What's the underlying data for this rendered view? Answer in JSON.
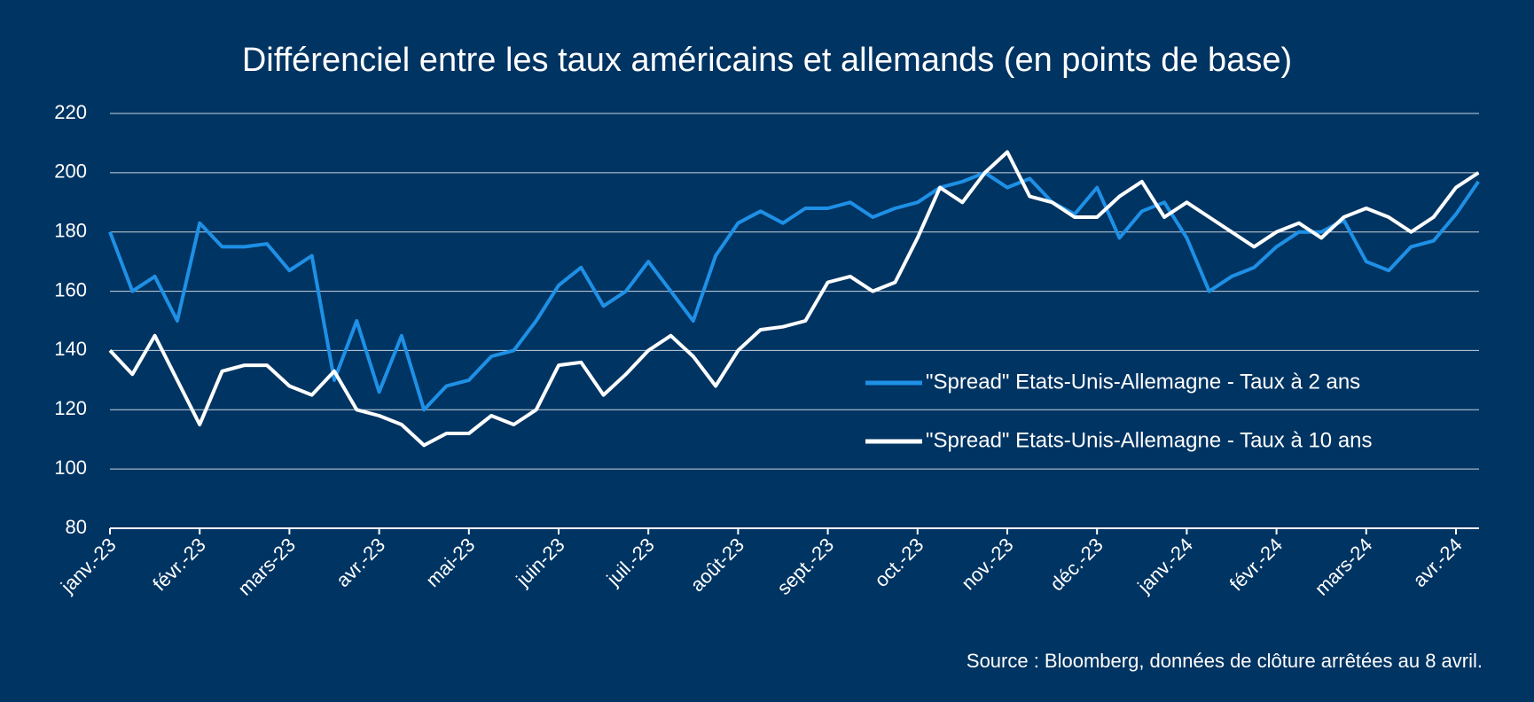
{
  "chart_data": {
    "type": "line",
    "title": "Différenciel entre les taux américains et allemands (en points de base)",
    "source": "Source : Bloomberg, données de clôture arrêtées au 8 avril.",
    "categories": [
      "janv.-23",
      "févr.-23",
      "mars-23",
      "avr.-23",
      "mai-23",
      "juin-23",
      "juil.-23",
      "août-23",
      "sept.-23",
      "oct.-23",
      "nov.-23",
      "déc.-23",
      "janv.-24",
      "févr.-24",
      "mars-24",
      "avr.-24"
    ],
    "x": [
      "janv.-23",
      "janv.-23",
      "janv.-23",
      "janv.-23",
      "févr.-23",
      "févr.-23",
      "févr.-23",
      "févr.-23",
      "mars-23",
      "mars-23",
      "mars-23",
      "mars-23",
      "avr.-23",
      "avr.-23",
      "avr.-23",
      "avr.-23",
      "mai-23",
      "mai-23",
      "mai-23",
      "mai-23",
      "juin-23",
      "juin-23",
      "juin-23",
      "juin-23",
      "juil.-23",
      "juil.-23",
      "juil.-23",
      "juil.-23",
      "août-23",
      "août-23",
      "août-23",
      "août-23",
      "sept.-23",
      "sept.-23",
      "sept.-23",
      "sept.-23",
      "oct.-23",
      "oct.-23",
      "oct.-23",
      "oct.-23",
      "nov.-23",
      "nov.-23",
      "nov.-23",
      "nov.-23",
      "déc.-23",
      "déc.-23",
      "déc.-23",
      "déc.-23",
      "janv.-24",
      "janv.-24",
      "janv.-24",
      "janv.-24",
      "févr.-24",
      "févr.-24",
      "févr.-24",
      "févr.-24",
      "mars-24",
      "mars-24",
      "mars-24",
      "mars-24",
      "avr.-24",
      "avr.-24"
    ],
    "series": [
      {
        "name": "\"Spread\" Etats-Unis-Allemagne - Taux à 2 ans",
        "color": "#1e90e6",
        "values": [
          180,
          160,
          165,
          150,
          183,
          175,
          175,
          176,
          167,
          172,
          130,
          150,
          126,
          145,
          120,
          128,
          130,
          138,
          140,
          150,
          162,
          168,
          155,
          160,
          170,
          160,
          150,
          172,
          183,
          187,
          183,
          188,
          188,
          190,
          185,
          188,
          190,
          195,
          197,
          200,
          195,
          198,
          190,
          186,
          195,
          178,
          187,
          190,
          178,
          160,
          165,
          168,
          175,
          180,
          180,
          184,
          170,
          167,
          175,
          177,
          186,
          197
        ]
      },
      {
        "name": "\"Spread\" Etats-Unis-Allemagne - Taux à 10 ans",
        "color": "#ffffff",
        "values": [
          140,
          132,
          145,
          130,
          115,
          133,
          135,
          135,
          128,
          125,
          133,
          120,
          118,
          115,
          108,
          112,
          112,
          118,
          115,
          120,
          135,
          136,
          125,
          132,
          140,
          145,
          138,
          128,
          140,
          147,
          148,
          150,
          163,
          165,
          160,
          163,
          178,
          195,
          190,
          200,
          207,
          192,
          190,
          185,
          185,
          192,
          197,
          185,
          190,
          185,
          180,
          175,
          180,
          183,
          178,
          185,
          188,
          185,
          180,
          185,
          195,
          200
        ]
      }
    ],
    "ylim": [
      80,
      220
    ],
    "yticks": [
      80,
      100,
      120,
      140,
      160,
      180,
      200,
      220
    ],
    "grid": true
  }
}
